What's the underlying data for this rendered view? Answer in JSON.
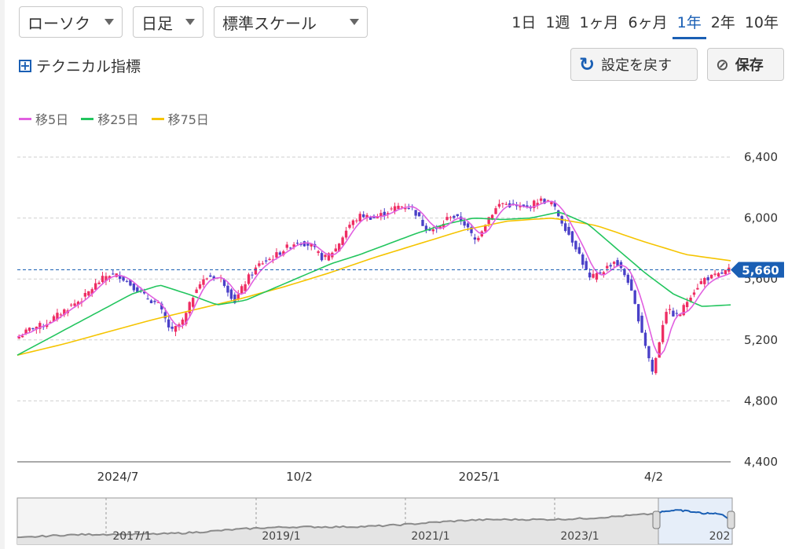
{
  "toolbar": {
    "chart_type": "ローソク",
    "interval": "日足",
    "scale": "標準スケール",
    "periods": [
      "1日",
      "1週",
      "1ヶ月",
      "6ヶ月",
      "1年",
      "2年",
      "10年"
    ],
    "active_period": "1年",
    "technical_label": "テクニカル指標",
    "reset_label": "設定を戻す",
    "save_label": "保存"
  },
  "colors": {
    "accent": "#1a5fb4",
    "up_candle": "#ee2d63",
    "down_candle": "#4a40c8",
    "ma5": "#e15fe0",
    "ma25": "#22c55e",
    "ma75": "#f5c400",
    "grid": "#cfcfcf"
  },
  "chart_data": {
    "type": "candlestick",
    "legend": [
      {
        "name": "移5日",
        "color": "#e15fe0"
      },
      {
        "name": "移25日",
        "color": "#22c55e"
      },
      {
        "name": "移75日",
        "color": "#f5c400"
      }
    ],
    "ylim": [
      4400,
      6400
    ],
    "yticks": [
      "6,400",
      "6,000",
      "5,600",
      "5,200",
      "4,800",
      "4,400"
    ],
    "ytick_values": [
      6400,
      6000,
      5600,
      5200,
      4800,
      4400
    ],
    "xticks": [
      "2024/7",
      "10/2",
      "2025/1",
      "4/2"
    ],
    "current_price_label": "5,660",
    "current_price": 5660,
    "close_path": [
      [
        "2024/5",
        5220
      ],
      [
        "2024/5",
        5280
      ],
      [
        "2024/6",
        5300
      ],
      [
        "2024/6",
        5360
      ],
      [
        "2024/6",
        5420
      ],
      [
        "2024/6",
        5470
      ],
      [
        "2024/7",
        5560
      ],
      [
        "2024/7",
        5630
      ],
      [
        "2024/7",
        5620
      ],
      [
        "2024/7",
        5550
      ],
      [
        "2024/7",
        5480
      ],
      [
        "2024/8",
        5430
      ],
      [
        "2024/8",
        5250
      ],
      [
        "2024/8",
        5330
      ],
      [
        "2024/8",
        5550
      ],
      [
        "2024/8",
        5620
      ],
      [
        "2024/9",
        5600
      ],
      [
        "2024/9",
        5450
      ],
      [
        "2024/9",
        5600
      ],
      [
        "2024/9",
        5700
      ],
      [
        "2024/10",
        5740
      ],
      [
        "2024/10",
        5800
      ],
      [
        "2024/10",
        5850
      ],
      [
        "2024/10",
        5820
      ],
      [
        "2024/10",
        5730
      ],
      [
        "2024/11",
        5800
      ],
      [
        "2024/11",
        5950
      ],
      [
        "2024/11",
        6020
      ],
      [
        "2024/11",
        6000
      ],
      [
        "2024/12",
        6040
      ],
      [
        "2024/12",
        6080
      ],
      [
        "2024/12",
        6070
      ],
      [
        "2024/12",
        5940
      ],
      [
        "2025/1",
        5920
      ],
      [
        "2025/1",
        6020
      ],
      [
        "2025/1",
        5980
      ],
      [
        "2025/1",
        5850
      ],
      [
        "2025/1",
        6000
      ],
      [
        "2025/2",
        6100
      ],
      [
        "2025/2",
        6080
      ],
      [
        "2025/2",
        6060
      ],
      [
        "2025/2",
        6120
      ],
      [
        "2025/2",
        6100
      ],
      [
        "2025/3",
        5950
      ],
      [
        "2025/3",
        5800
      ],
      [
        "2025/3",
        5600
      ],
      [
        "2025/3",
        5650
      ],
      [
        "2025/3",
        5720
      ],
      [
        "2025/3",
        5600
      ],
      [
        "2025/4",
        5300
      ],
      [
        "2025/4",
        4980
      ],
      [
        "2025/4",
        5400
      ],
      [
        "2025/4",
        5350
      ],
      [
        "2025/4",
        5500
      ],
      [
        "2025/5",
        5600
      ],
      [
        "2025/5",
        5620
      ],
      [
        "2025/5",
        5660
      ]
    ],
    "ma25_path": [
      5100,
      5200,
      5300,
      5400,
      5500,
      5560,
      5500,
      5430,
      5460,
      5540,
      5620,
      5700,
      5760,
      5830,
      5900,
      5960,
      6000,
      5990,
      6000,
      6040,
      5960,
      5800,
      5640,
      5500,
      5420,
      5430
    ],
    "ma75_path": [
      5100,
      5170,
      5250,
      5330,
      5400,
      5470,
      5550,
      5640,
      5740,
      5830,
      5920,
      5980,
      6000,
      5950,
      5850,
      5760,
      5720
    ]
  },
  "navigator": {
    "labels": [
      "2017/1",
      "2019/1",
      "2021/1",
      "2023/1",
      "202"
    ]
  }
}
